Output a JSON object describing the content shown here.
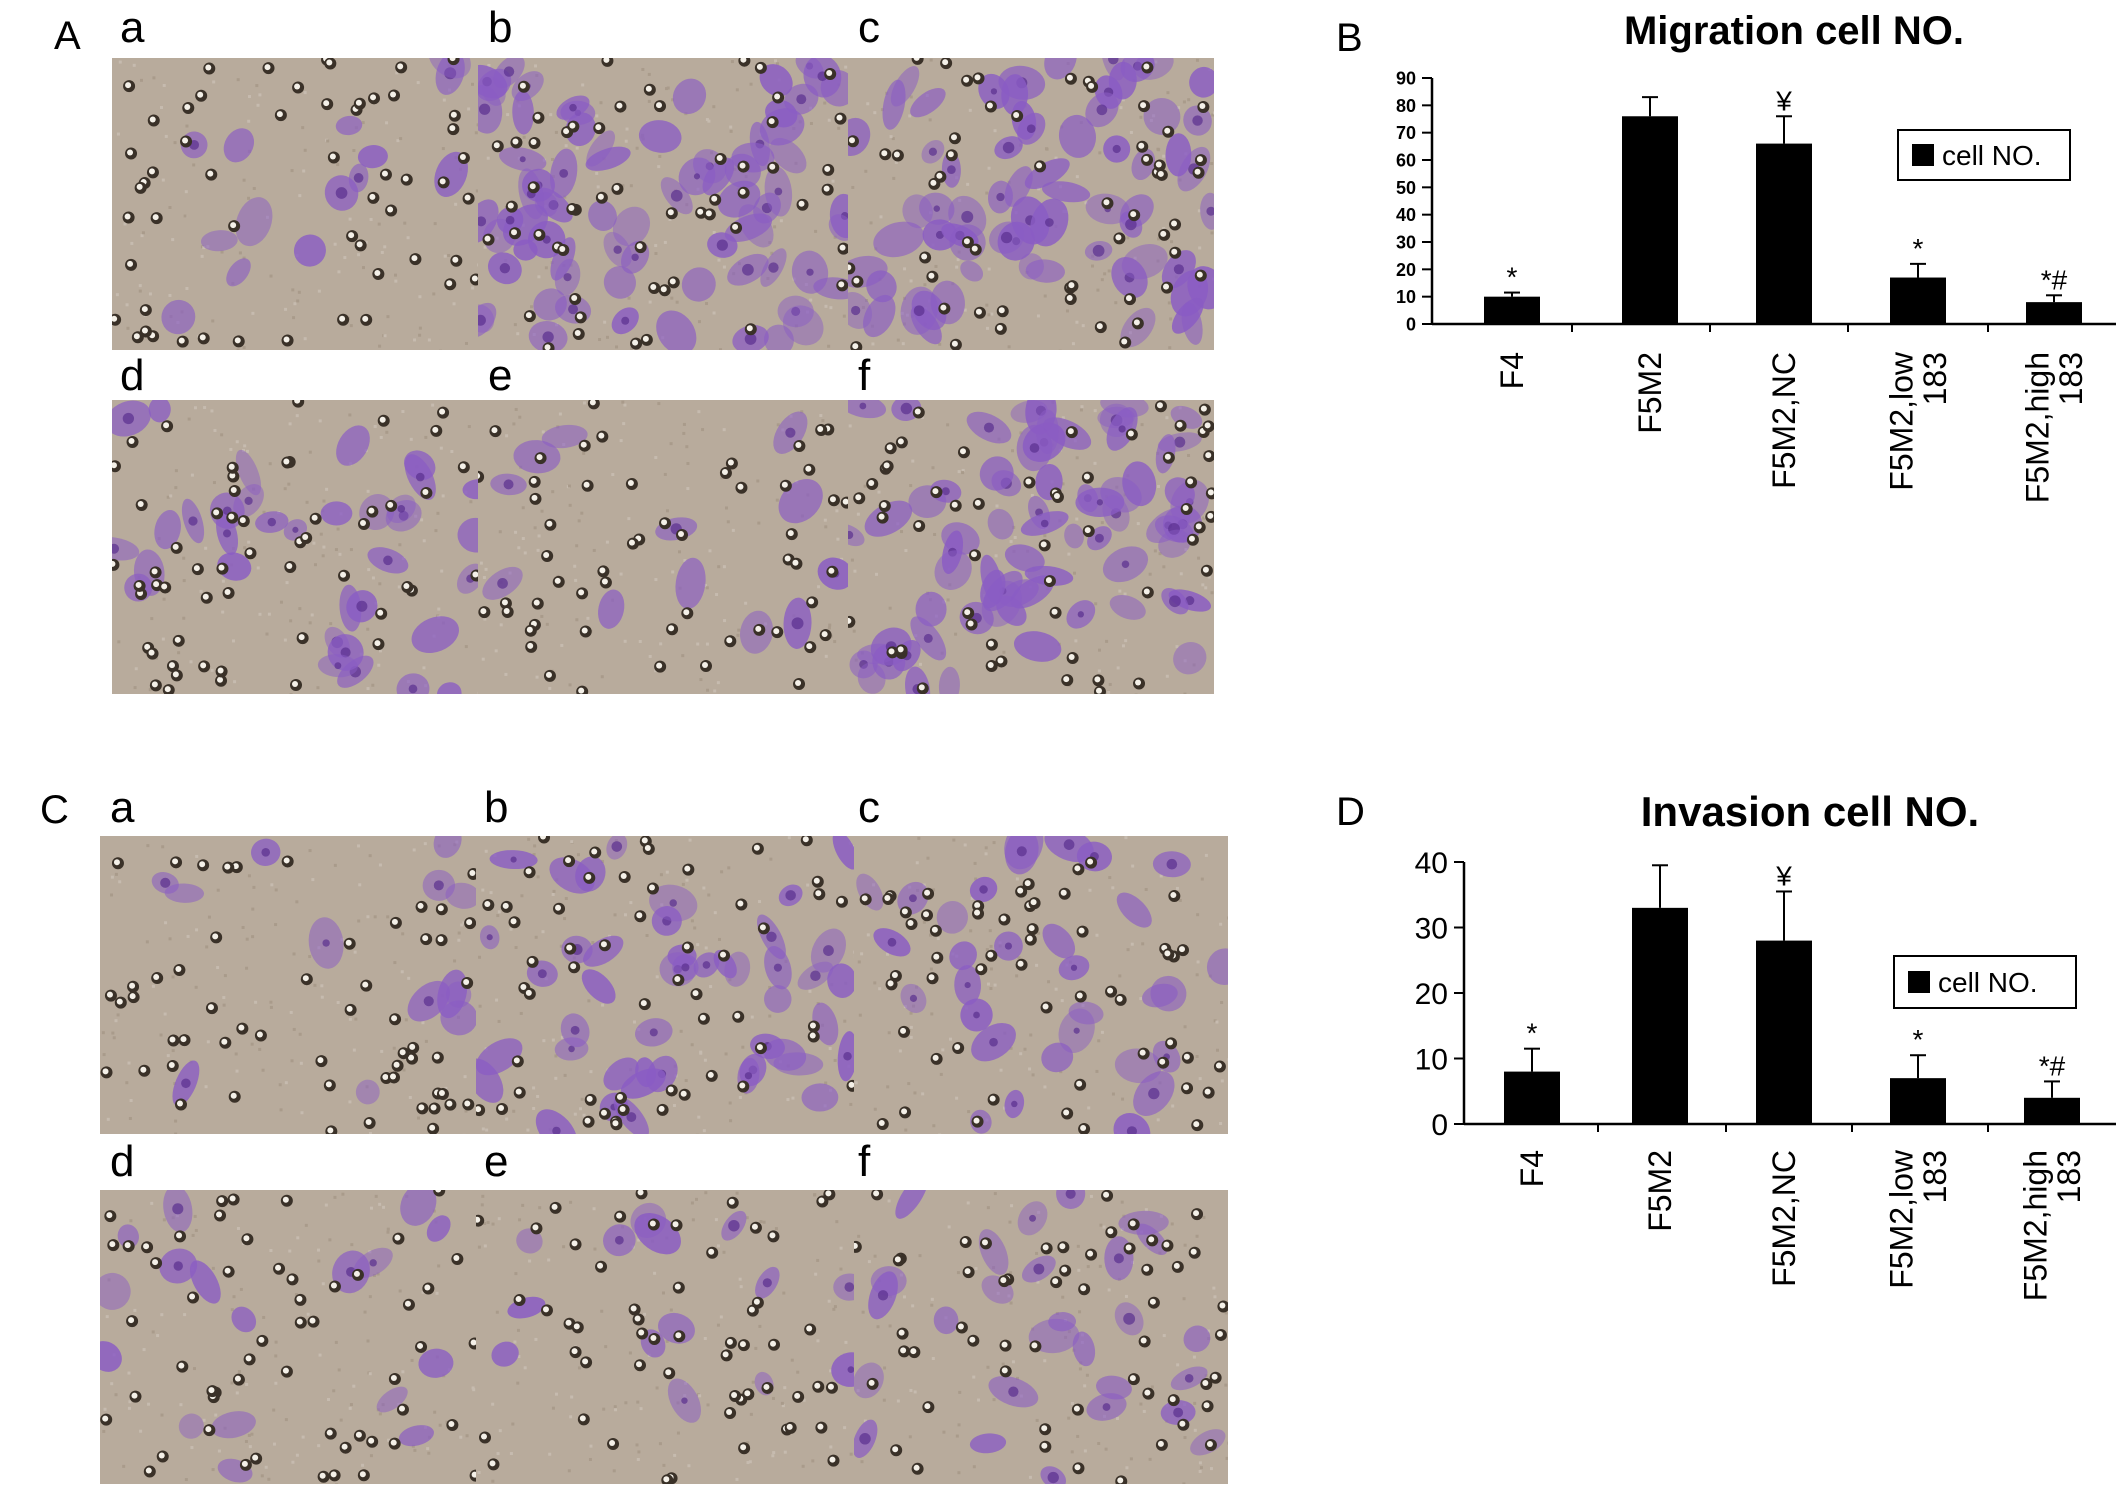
{
  "figure": {
    "panel_A": {
      "label": "A",
      "subpanels": [
        "a",
        "b",
        "c",
        "d",
        "e",
        "f"
      ]
    },
    "panel_C": {
      "label": "C",
      "subpanels": [
        "a",
        "b",
        "c",
        "d",
        "e",
        "f"
      ]
    },
    "panel_B": {
      "label": "B"
    },
    "panel_D": {
      "label": "D"
    },
    "colors": {
      "bar": "#000000",
      "background": "#ffffff",
      "stain": "#8a5cc4",
      "membrane": "#b8ab9c"
    },
    "micrograph_cell_density": {
      "A": [
        0.12,
        0.95,
        0.85,
        0.4,
        0.08,
        0.9
      ],
      "C": [
        0.1,
        0.55,
        0.35,
        0.15,
        0.12,
        0.3
      ]
    }
  },
  "chart_data": [
    {
      "type": "bar",
      "title": "Migration cell NO.",
      "categories": [
        "F4",
        "F5M2",
        "F5M2,NC",
        "F5M2,low\n183",
        "F5M2,high\n183"
      ],
      "series": [
        {
          "name": "cell NO.",
          "values": [
            10,
            76,
            66,
            17,
            8
          ],
          "errors": [
            1.5,
            7,
            10,
            5,
            2.5
          ]
        }
      ],
      "annotations": [
        "*",
        "",
        "¥",
        "*",
        "*#"
      ],
      "yticks": [
        "0",
        "10",
        "20",
        "30",
        "40",
        "50",
        "60",
        "70",
        "80",
        "90"
      ],
      "ylim": [
        0,
        90
      ],
      "legend": "right",
      "grid": false,
      "xlabel": "",
      "ylabel": ""
    },
    {
      "type": "bar",
      "title": "Invasion cell NO.",
      "categories": [
        "F4",
        "F5M2",
        "F5M2,NC",
        "F5M2,low\n183",
        "F5M2,high\n183"
      ],
      "series": [
        {
          "name": "cell NO.",
          "values": [
            8,
            33,
            28,
            7,
            4
          ],
          "errors": [
            3.5,
            6.5,
            7.5,
            3.5,
            2.5
          ]
        }
      ],
      "annotations": [
        "*",
        "",
        "¥",
        "*",
        "*#"
      ],
      "yticks": [
        "0",
        "10",
        "20",
        "30",
        "40"
      ],
      "ylim": [
        0,
        40
      ],
      "legend": "right",
      "grid": false,
      "xlabel": "",
      "ylabel": ""
    }
  ]
}
